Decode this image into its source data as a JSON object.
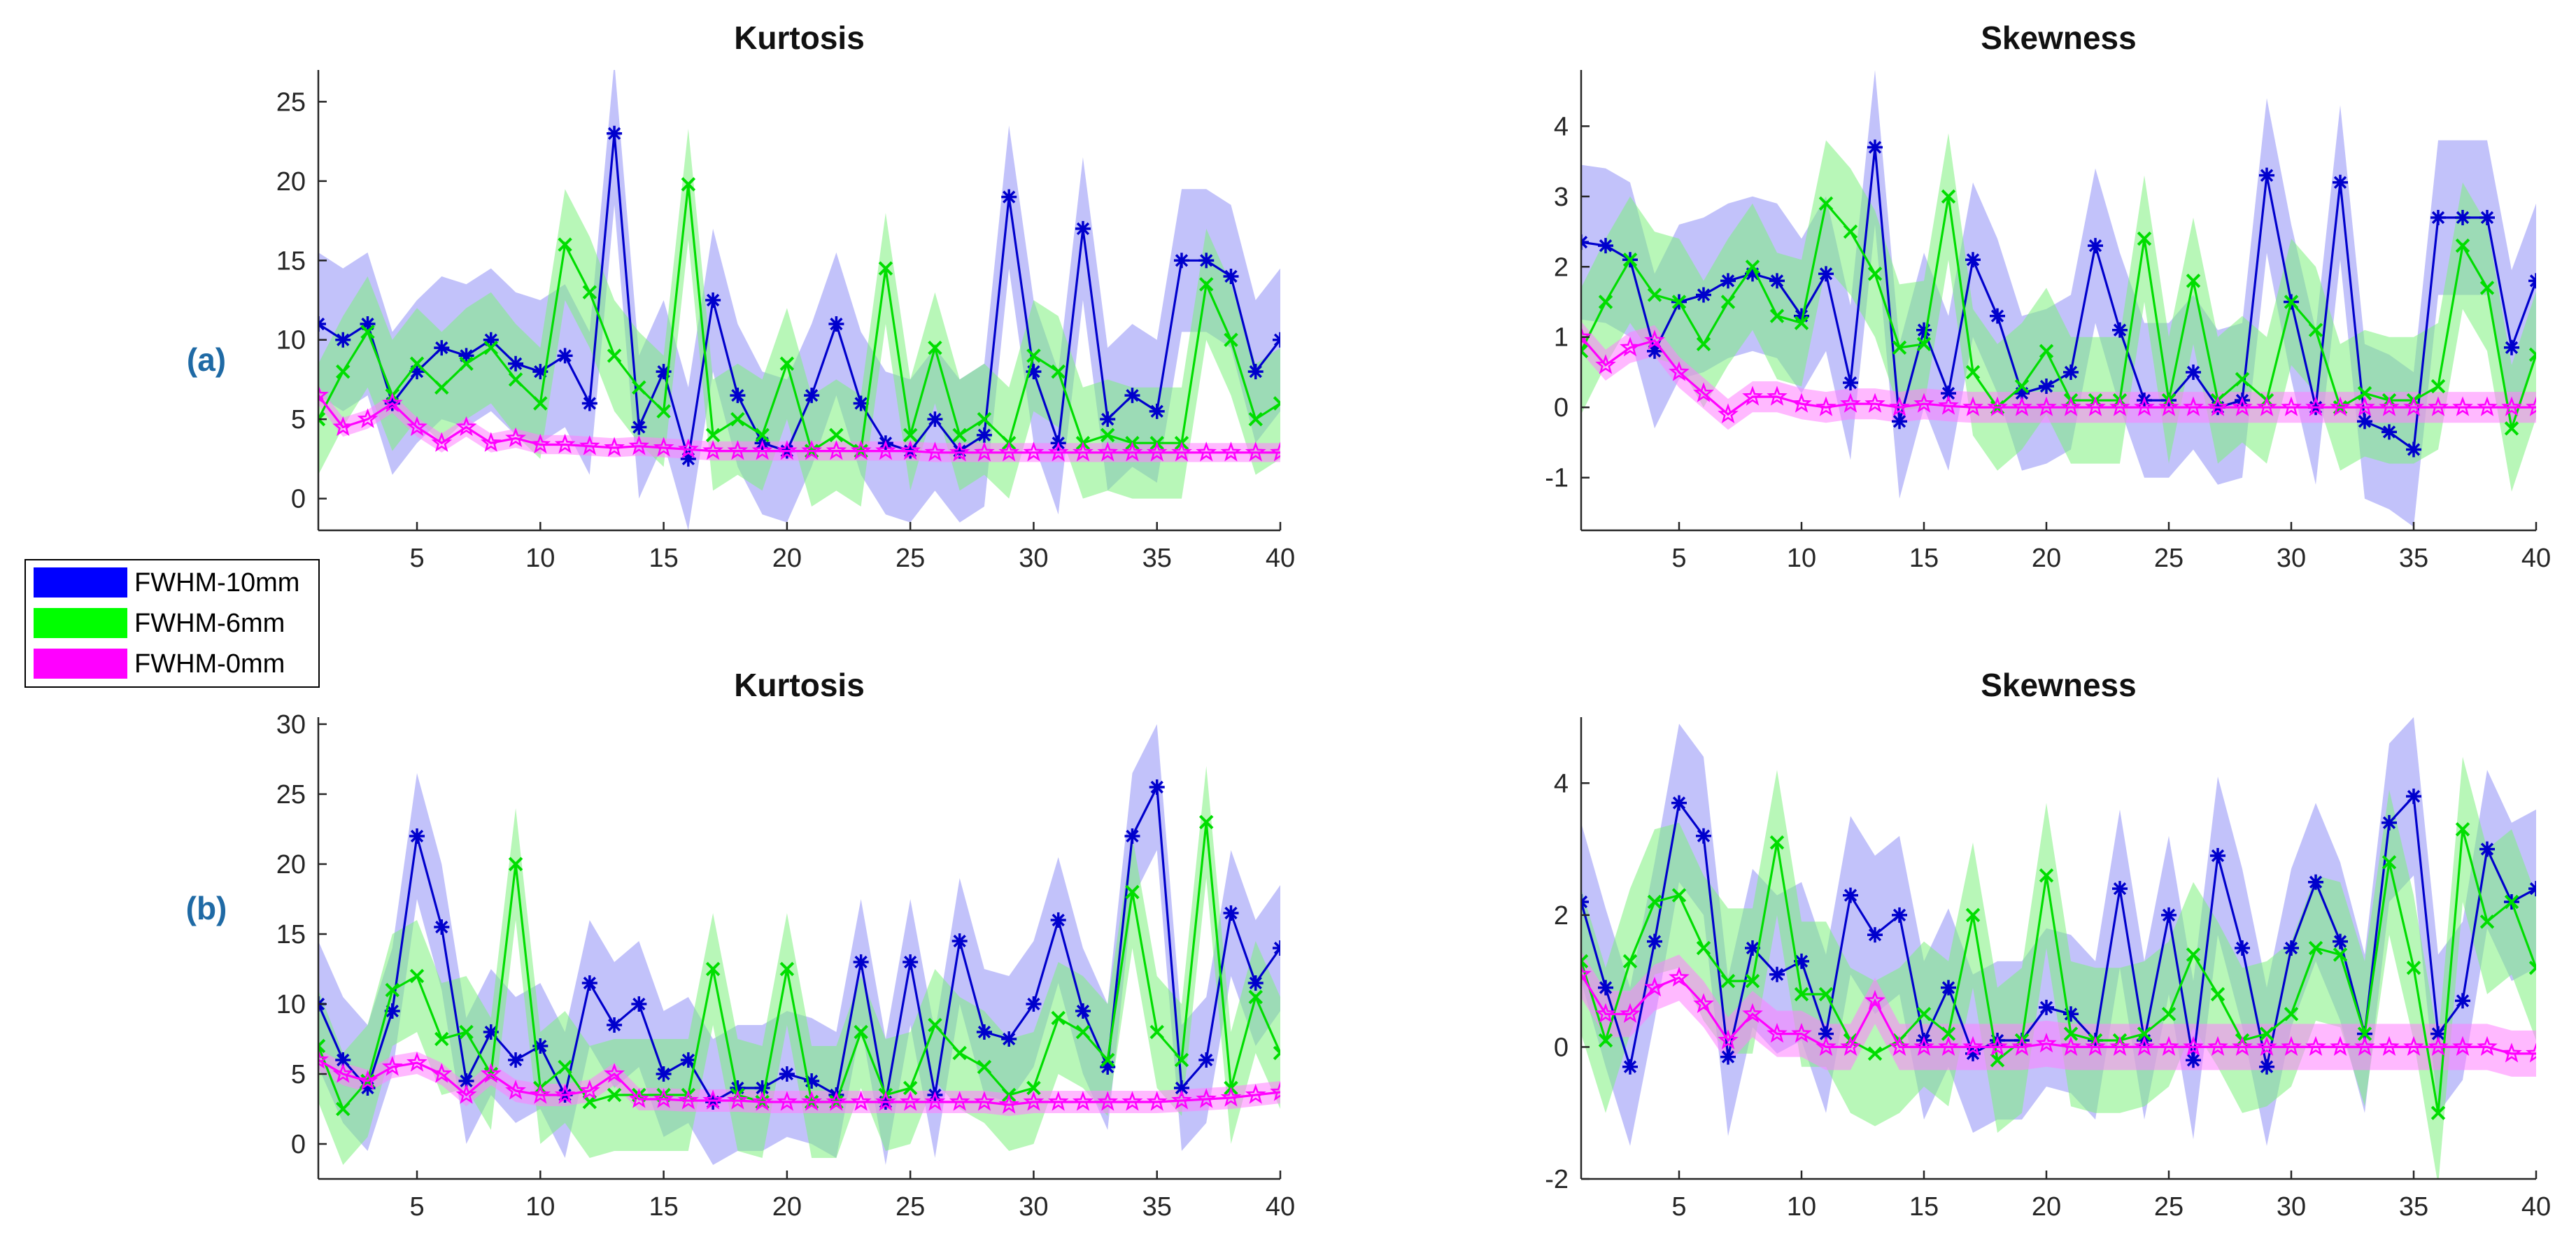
{
  "row_labels": [
    "(a)",
    "(b)"
  ],
  "legend": [
    {
      "label": "FWHM-10mm",
      "color": "#0000ff"
    },
    {
      "label": "FWHM-6mm",
      "color": "#00ff00"
    },
    {
      "label": "FWHM-0mm",
      "color": "#ff00ff"
    }
  ],
  "series_styles": {
    "FWHM-10mm": {
      "line": "#0000cc",
      "band": "#8f8ff5",
      "marker": "asterisk"
    },
    "FWHM-6mm": {
      "line": "#00dd00",
      "band": "#7ef07e",
      "marker": "cross"
    },
    "FWHM-0mm": {
      "line": "#ff00ff",
      "band": "#ff80ff",
      "marker": "star"
    }
  },
  "chart_data": [
    {
      "type": "line",
      "title": "Kurtosis",
      "row": "(a)",
      "xlim": [
        1,
        40
      ],
      "ylim": [
        -2,
        27
      ],
      "xticks": [
        5,
        10,
        15,
        20,
        25,
        30,
        35,
        40
      ],
      "yticks": [
        0,
        5,
        10,
        15,
        20,
        25
      ],
      "series": [
        {
          "name": "FWHM-10mm",
          "band_width": 4.5,
          "values": [
            11,
            10,
            11,
            6,
            8,
            9.5,
            9,
            10,
            8.5,
            8,
            9,
            6,
            23,
            4.5,
            8,
            2.5,
            12.5,
            6.5,
            3.5,
            3,
            6.5,
            11,
            6,
            3.5,
            3,
            5,
            3,
            4,
            19,
            8,
            3.5,
            17,
            5,
            6.5,
            5.5,
            15,
            15,
            14,
            8,
            10
          ]
        },
        {
          "name": "FWHM-6mm",
          "band_width": 3.5,
          "values": [
            5,
            8,
            10.5,
            6.5,
            8.5,
            7,
            8.5,
            9.5,
            7.5,
            6,
            16,
            13,
            9,
            7,
            5.5,
            19.8,
            4,
            5,
            4,
            8.5,
            3,
            4,
            3,
            14.5,
            4,
            9.5,
            4,
            5,
            3.5,
            9,
            8,
            3.5,
            4,
            3.5,
            3.5,
            3.5,
            13.5,
            10,
            5,
            6
          ]
        },
        {
          "name": "FWHM-0mm",
          "band_width": 0.6,
          "values": [
            6.5,
            4.5,
            5,
            6,
            4.5,
            3.5,
            4.5,
            3.5,
            3.8,
            3.4,
            3.4,
            3.3,
            3.2,
            3.3,
            3.2,
            3.1,
            3,
            3,
            3,
            3,
            3,
            3,
            3,
            3,
            3,
            2.9,
            2.9,
            2.9,
            2.9,
            2.9,
            2.9,
            2.9,
            2.9,
            2.9,
            2.9,
            2.9,
            2.9,
            2.9,
            2.9,
            2.9
          ]
        }
      ]
    },
    {
      "type": "line",
      "title": "Skewness",
      "row": "(a)",
      "xlim": [
        1,
        40
      ],
      "ylim": [
        -1.75,
        4.8
      ],
      "xticks": [
        5,
        10,
        15,
        20,
        25,
        30,
        35,
        40
      ],
      "yticks": [
        -1,
        0,
        1,
        2,
        3,
        4
      ],
      "series": [
        {
          "name": "FWHM-10mm",
          "band_width": 1.1,
          "values": [
            2.35,
            2.3,
            2.1,
            0.8,
            1.5,
            1.6,
            1.8,
            1.9,
            1.8,
            1.3,
            1.9,
            0.35,
            3.7,
            -0.2,
            1.1,
            0.2,
            2.1,
            1.3,
            0.2,
            0.3,
            0.5,
            2.3,
            1.1,
            0.1,
            0.1,
            0.5,
            0,
            0.1,
            3.3,
            1.5,
            0,
            3.2,
            -0.2,
            -0.35,
            -0.6,
            2.7,
            2.7,
            2.7,
            0.85,
            1.8
          ]
        },
        {
          "name": "FWHM-6mm",
          "band_width": 0.9,
          "values": [
            0.8,
            1.5,
            2.1,
            1.6,
            1.5,
            0.9,
            1.5,
            2,
            1.3,
            1.2,
            2.9,
            2.5,
            1.9,
            0.85,
            0.9,
            3,
            0.5,
            0,
            0.3,
            0.8,
            0.1,
            0.1,
            0.1,
            2.4,
            0.1,
            1.8,
            0.1,
            0.4,
            0.1,
            1.5,
            1.1,
            0,
            0.2,
            0.1,
            0.1,
            0.3,
            2.3,
            1.7,
            -0.3,
            0.75
          ]
        },
        {
          "name": "FWHM-0mm",
          "band_width": 0.22,
          "values": [
            1,
            0.6,
            0.85,
            0.95,
            0.5,
            0.2,
            -0.1,
            0.15,
            0.15,
            0.05,
            0,
            0.05,
            0.05,
            0,
            0.05,
            0.02,
            0,
            0,
            0,
            0,
            0,
            0,
            0,
            0,
            0,
            0,
            0,
            0,
            0,
            0,
            0,
            0,
            0,
            0,
            0,
            0,
            0,
            0,
            0,
            0
          ]
        }
      ]
    },
    {
      "type": "line",
      "title": "Kurtosis",
      "row": "(b)",
      "xlim": [
        1,
        40
      ],
      "ylim": [
        -2.5,
        30.5
      ],
      "xticks": [
        5,
        10,
        15,
        20,
        25,
        30,
        35,
        40
      ],
      "yticks": [
        0,
        5,
        10,
        15,
        20,
        25,
        30
      ],
      "series": [
        {
          "name": "FWHM-10mm",
          "band_width": 4.5,
          "values": [
            10,
            6,
            4,
            9.5,
            22,
            15.5,
            4.5,
            8,
            6,
            7,
            3.5,
            11.5,
            8.5,
            10,
            5,
            6,
            3,
            4,
            4,
            5,
            4.5,
            3.5,
            13,
            3,
            13,
            3.5,
            14.5,
            8,
            7.5,
            10,
            16,
            9.5,
            5.5,
            22,
            25.5,
            4,
            6,
            16.5,
            11.5,
            14
          ]
        },
        {
          "name": "FWHM-6mm",
          "band_width": 4,
          "values": [
            7,
            2.5,
            4.5,
            11,
            12,
            7.5,
            8,
            5,
            20,
            4,
            5.5,
            3,
            3.5,
            3.5,
            3.5,
            3.5,
            12.5,
            3.5,
            3,
            12.5,
            3,
            3,
            8,
            3.5,
            4,
            8.5,
            6.5,
            5.5,
            3.5,
            4,
            9,
            8,
            6,
            18,
            8,
            6,
            23,
            4,
            10.5,
            6.5
          ]
        },
        {
          "name": "FWHM-0mm",
          "band_width": 0.8,
          "values": [
            6,
            5,
            4.5,
            5.5,
            5.8,
            5,
            3.5,
            5,
            3.8,
            3.5,
            3.5,
            3.8,
            5,
            3.2,
            3.2,
            3.1,
            3.1,
            3.1,
            3,
            3,
            3,
            3,
            3,
            3,
            3,
            3,
            3,
            3,
            2.8,
            3,
            3,
            3,
            3,
            3,
            3,
            3.1,
            3.2,
            3.3,
            3.5,
            3.7
          ]
        }
      ]
    },
    {
      "type": "line",
      "title": "Skewness",
      "row": "(b)",
      "xlim": [
        1,
        40
      ],
      "ylim": [
        -2,
        5
      ],
      "xticks": [
        5,
        10,
        15,
        20,
        25,
        30,
        35,
        40
      ],
      "yticks": [
        -2,
        0,
        2,
        4
      ],
      "series": [
        {
          "name": "FWHM-10mm",
          "band_width": 1.2,
          "values": [
            2.2,
            0.9,
            -0.3,
            1.6,
            3.7,
            3.2,
            -0.15,
            1.5,
            1.1,
            1.3,
            0.2,
            2.3,
            1.7,
            2,
            0.1,
            0.9,
            -0.1,
            0.1,
            0.1,
            0.6,
            0.5,
            0.1,
            2.4,
            0.1,
            2,
            -0.2,
            2.9,
            1.5,
            -0.3,
            1.5,
            2.5,
            1.6,
            0.2,
            3.4,
            3.8,
            0.2,
            0.7,
            3,
            2.2,
            2.4
          ]
        },
        {
          "name": "FWHM-6mm",
          "band_width": 1.1,
          "values": [
            1.3,
            0.1,
            1.3,
            2.2,
            2.3,
            1.5,
            1,
            1,
            3.1,
            0.8,
            0.8,
            0.1,
            -0.1,
            0.1,
            0.5,
            0.2,
            2,
            -0.2,
            0.1,
            2.6,
            0.2,
            0.1,
            0.1,
            0.2,
            0.5,
            1.4,
            0.8,
            0.1,
            0.2,
            0.5,
            1.5,
            1.4,
            0.2,
            2.8,
            1.2,
            -1,
            3.3,
            1.9,
            2.2,
            1.2
          ]
        },
        {
          "name": "FWHM-0mm",
          "band_width": 0.35,
          "values": [
            1.1,
            0.5,
            0.5,
            0.9,
            1.05,
            0.65,
            0.1,
            0.5,
            0.2,
            0.2,
            0,
            0,
            0.7,
            0,
            0,
            0,
            0,
            0,
            0,
            0.05,
            0,
            0,
            0,
            0,
            0,
            0,
            0,
            0,
            0,
            0,
            0,
            0,
            0,
            0,
            0,
            0,
            0,
            0,
            -0.1,
            -0.1
          ]
        }
      ]
    }
  ]
}
